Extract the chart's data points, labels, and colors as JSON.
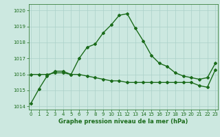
{
  "series1": {
    "x": [
      0,
      1,
      2,
      3,
      4,
      5,
      6,
      7,
      8,
      9,
      10,
      11,
      12,
      13,
      14,
      15,
      16,
      17,
      18,
      19,
      20,
      21,
      22,
      23
    ],
    "y": [
      1014.2,
      1015.1,
      1015.9,
      1016.2,
      1016.2,
      1016.0,
      1017.0,
      1017.7,
      1017.9,
      1018.6,
      1019.1,
      1019.7,
      1019.8,
      1018.9,
      1018.1,
      1017.2,
      1016.7,
      1016.5,
      1016.1,
      1015.9,
      1015.8,
      1015.7,
      1015.8,
      1016.7
    ],
    "color": "#1a6b1a",
    "linewidth": 1.0,
    "marker": "D",
    "markersize": 2.0
  },
  "series2": {
    "x": [
      0,
      1,
      2,
      3,
      4,
      5,
      6,
      7,
      8,
      9,
      10,
      11,
      12,
      13,
      14,
      15,
      16,
      17,
      18,
      19,
      20,
      21,
      22,
      23
    ],
    "y": [
      1016.0,
      1016.0,
      1016.0,
      1016.1,
      1016.1,
      1016.0,
      1016.0,
      1015.9,
      1015.8,
      1015.7,
      1015.6,
      1015.6,
      1015.5,
      1015.5,
      1015.5,
      1015.5,
      1015.5,
      1015.5,
      1015.5,
      1015.5,
      1015.5,
      1015.3,
      1015.2,
      1016.3
    ],
    "color": "#1a6b1a",
    "linewidth": 1.0,
    "marker": "D",
    "markersize": 2.0
  },
  "xlim": [
    -0.3,
    23.3
  ],
  "ylim": [
    1013.8,
    1020.4
  ],
  "yticks": [
    1014,
    1015,
    1016,
    1017,
    1018,
    1019,
    1020
  ],
  "xticks": [
    0,
    1,
    2,
    3,
    4,
    5,
    6,
    7,
    8,
    9,
    10,
    11,
    12,
    13,
    14,
    15,
    16,
    17,
    18,
    19,
    20,
    21,
    22,
    23
  ],
  "xlabel": "Graphe pression niveau de la mer (hPa)",
  "bg_color": "#cce8e0",
  "grid_color": "#aad0c8",
  "text_color": "#1a6b1a",
  "tick_fontsize": 5.0,
  "label_fontsize": 6.0
}
